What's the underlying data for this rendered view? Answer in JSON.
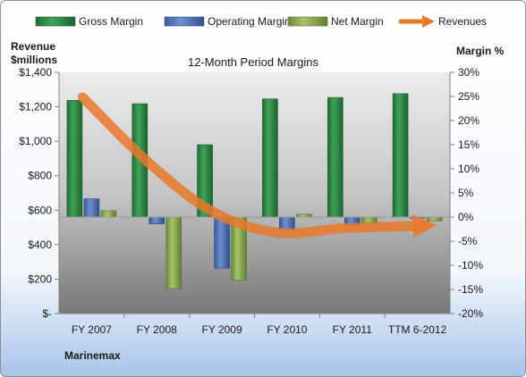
{
  "chart_data": {
    "type": "bar",
    "title": "12-Month Period Margins",
    "left_axis_title": [
      "Revenue",
      "$millions"
    ],
    "right_axis_title": "Margin %",
    "company": "Marinemax",
    "categories": [
      "FY 2007",
      "FY 2008",
      "FY 2009",
      "FY 2010",
      "FY 2011",
      "TTM 6-2012"
    ],
    "left_axis": {
      "ylim": [
        0,
        1400
      ],
      "ticks": [
        0,
        200,
        400,
        600,
        800,
        1000,
        1200,
        1400
      ],
      "tick_labels": [
        "$-",
        "$200",
        "$400",
        "$600",
        "$800",
        "$1,000",
        "$1,200",
        "$1,400"
      ]
    },
    "right_axis": {
      "ylim": [
        -20,
        30
      ],
      "ticks": [
        -20,
        -15,
        -10,
        -5,
        0,
        5,
        10,
        15,
        20,
        25,
        30
      ],
      "tick_labels": [
        "-20%",
        "-15%",
        "-10%",
        "-5%",
        "0%",
        "5%",
        "10%",
        "15%",
        "20%",
        "25%",
        "30%"
      ]
    },
    "series": [
      {
        "name": "Gross Margin",
        "axis": "right",
        "color": "#2e8b46",
        "values": [
          24.2,
          23.5,
          15.0,
          24.5,
          24.8,
          25.6
        ]
      },
      {
        "name": "Operating Margin",
        "axis": "right",
        "color": "#4f72b8",
        "values": [
          3.8,
          -1.4,
          -10.6,
          -2.7,
          -1.6,
          -0.2
        ]
      },
      {
        "name": "Net Margin",
        "axis": "right",
        "color": "#8db155",
        "values": [
          1.3,
          -14.8,
          -13.1,
          0.6,
          -1.3,
          -0.8
        ]
      }
    ],
    "trend": {
      "name": "Revenues",
      "axis": "left",
      "color": "#e8782a",
      "values": [
        1255,
        880,
        590,
        470,
        495,
        510
      ]
    },
    "legend": {
      "position": "top"
    },
    "grid": false
  }
}
